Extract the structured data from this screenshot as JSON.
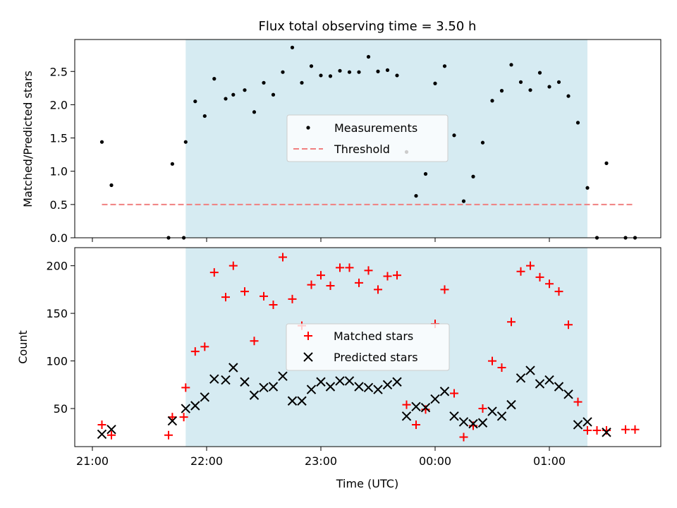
{
  "chart_data": [
    {
      "type": "scatter",
      "title": "Flux total observing time = 3.50 h",
      "xlabel": "",
      "ylabel": "Matched/Predicted stars",
      "x_ticks": [
        "21:00",
        "22:00",
        "23:00",
        "00:00",
        "01:00"
      ],
      "y_ticks": [
        "0.0",
        "0.5",
        "1.0",
        "1.5",
        "2.0",
        "2.5"
      ],
      "ylim": [
        0,
        2.98
      ],
      "shaded_span": {
        "start": "21:49",
        "end": "01:20",
        "color": "#add8e6"
      },
      "threshold": {
        "name": "Threshold",
        "value": 0.5,
        "x_start": "21:05",
        "x_end": "01:45",
        "style": "dashed",
        "color": "#f08080"
      },
      "legend": {
        "position": "center",
        "entries": [
          "Measurements",
          "Threshold"
        ]
      },
      "series": [
        {
          "name": "Measurements",
          "color": "#000000",
          "marker": "dot",
          "points": [
            [
              "21:05",
              1.44
            ],
            [
              "21:10",
              0.79
            ],
            [
              "21:40",
              0.0
            ],
            [
              "21:42",
              1.11
            ],
            [
              "21:48",
              0.0
            ],
            [
              "21:49",
              1.44
            ],
            [
              "21:54",
              2.05
            ],
            [
              "21:59",
              1.83
            ],
            [
              "22:04",
              2.39
            ],
            [
              "22:10",
              2.09
            ],
            [
              "22:14",
              2.15
            ],
            [
              "22:20",
              2.22
            ],
            [
              "22:25",
              1.89
            ],
            [
              "22:30",
              2.33
            ],
            [
              "22:35",
              2.15
            ],
            [
              "22:40",
              2.49
            ],
            [
              "22:45",
              2.86
            ],
            [
              "22:50",
              2.33
            ],
            [
              "22:55",
              2.58
            ],
            [
              "23:00",
              2.44
            ],
            [
              "23:05",
              2.43
            ],
            [
              "23:10",
              2.51
            ],
            [
              "23:15",
              2.49
            ],
            [
              "23:20",
              2.49
            ],
            [
              "23:25",
              2.72
            ],
            [
              "23:30",
              2.5
            ],
            [
              "23:35",
              2.52
            ],
            [
              "23:40",
              2.44
            ],
            [
              "23:45",
              1.29
            ],
            [
              "23:50",
              0.63
            ],
            [
              "23:55",
              0.96
            ],
            [
              "00:00",
              2.32
            ],
            [
              "00:05",
              2.58
            ],
            [
              "00:10",
              1.54
            ],
            [
              "00:15",
              0.55
            ],
            [
              "00:20",
              0.92
            ],
            [
              "00:25",
              1.43
            ],
            [
              "00:30",
              2.06
            ],
            [
              "00:35",
              2.21
            ],
            [
              "00:40",
              2.6
            ],
            [
              "00:45",
              2.34
            ],
            [
              "00:50",
              2.22
            ],
            [
              "00:55",
              2.48
            ],
            [
              "01:00",
              2.27
            ],
            [
              "01:05",
              2.34
            ],
            [
              "01:10",
              2.13
            ],
            [
              "01:15",
              1.73
            ],
            [
              "01:20",
              0.75
            ],
            [
              "01:25",
              0.0
            ],
            [
              "01:30",
              1.12
            ],
            [
              "01:40",
              0.0
            ],
            [
              "01:45",
              0.0
            ]
          ]
        }
      ]
    },
    {
      "type": "scatter",
      "title": "",
      "xlabel": "Time (UTC)",
      "ylabel": "Count",
      "x_ticks": [
        "21:00",
        "22:00",
        "23:00",
        "00:00",
        "01:00"
      ],
      "y_ticks": [
        "50",
        "100",
        "150",
        "200"
      ],
      "ylim": [
        10,
        219
      ],
      "shaded_span": {
        "start": "21:49",
        "end": "01:20",
        "color": "#add8e6"
      },
      "legend": {
        "position": "center",
        "entries": [
          "Matched stars",
          "Predicted stars"
        ]
      },
      "series": [
        {
          "name": "Matched stars",
          "color": "#ff0000",
          "marker": "plus",
          "points": [
            [
              "21:05",
              33
            ],
            [
              "21:10",
              22
            ],
            [
              "21:40",
              22
            ],
            [
              "21:42",
              41
            ],
            [
              "21:48",
              41
            ],
            [
              "21:49",
              72
            ],
            [
              "21:54",
              110
            ],
            [
              "21:59",
              115
            ],
            [
              "22:04",
              193
            ],
            [
              "22:10",
              167
            ],
            [
              "22:14",
              200
            ],
            [
              "22:20",
              173
            ],
            [
              "22:25",
              121
            ],
            [
              "22:30",
              168
            ],
            [
              "22:35",
              159
            ],
            [
              "22:40",
              209
            ],
            [
              "22:45",
              165
            ],
            [
              "22:50",
              137
            ],
            [
              "22:55",
              180
            ],
            [
              "23:00",
              190
            ],
            [
              "23:05",
              179
            ],
            [
              "23:10",
              198
            ],
            [
              "23:15",
              198
            ],
            [
              "23:20",
              182
            ],
            [
              "23:25",
              195
            ],
            [
              "23:30",
              175
            ],
            [
              "23:35",
              189
            ],
            [
              "23:40",
              190
            ],
            [
              "23:45",
              54
            ],
            [
              "23:50",
              33
            ],
            [
              "23:55",
              49
            ],
            [
              "00:00",
              139
            ],
            [
              "00:05",
              175
            ],
            [
              "00:10",
              66
            ],
            [
              "00:15",
              20
            ],
            [
              "00:20",
              32
            ],
            [
              "00:25",
              50
            ],
            [
              "00:30",
              100
            ],
            [
              "00:35",
              93
            ],
            [
              "00:40",
              141
            ],
            [
              "00:45",
              194
            ],
            [
              "00:50",
              200
            ],
            [
              "00:55",
              188
            ],
            [
              "01:00",
              181
            ],
            [
              "01:05",
              173
            ],
            [
              "01:10",
              138
            ],
            [
              "01:15",
              57
            ],
            [
              "01:20",
              27
            ],
            [
              "01:25",
              27
            ],
            [
              "01:30",
              27
            ],
            [
              "01:40",
              28
            ],
            [
              "01:45",
              28
            ]
          ]
        },
        {
          "name": "Predicted stars",
          "color": "#000000",
          "marker": "x",
          "points": [
            [
              "21:05",
              23
            ],
            [
              "21:10",
              28
            ],
            [
              "21:42",
              37
            ],
            [
              "21:49",
              50
            ],
            [
              "21:54",
              53
            ],
            [
              "21:59",
              62
            ],
            [
              "22:04",
              81
            ],
            [
              "22:10",
              80
            ],
            [
              "22:14",
              93
            ],
            [
              "22:20",
              78
            ],
            [
              "22:25",
              64
            ],
            [
              "22:30",
              72
            ],
            [
              "22:35",
              73
            ],
            [
              "22:40",
              84
            ],
            [
              "22:45",
              58
            ],
            [
              "22:50",
              58
            ],
            [
              "22:55",
              70
            ],
            [
              "23:00",
              78
            ],
            [
              "23:05",
              73
            ],
            [
              "23:10",
              79
            ],
            [
              "23:15",
              79
            ],
            [
              "23:20",
              73
            ],
            [
              "23:25",
              72
            ],
            [
              "23:30",
              70
            ],
            [
              "23:35",
              75
            ],
            [
              "23:40",
              78
            ],
            [
              "23:45",
              42
            ],
            [
              "23:50",
              52
            ],
            [
              "23:55",
              51
            ],
            [
              "00:00",
              60
            ],
            [
              "00:05",
              68
            ],
            [
              "00:10",
              42
            ],
            [
              "00:15",
              36
            ],
            [
              "00:20",
              34
            ],
            [
              "00:25",
              35
            ],
            [
              "00:30",
              47
            ],
            [
              "00:35",
              42
            ],
            [
              "00:40",
              54
            ],
            [
              "00:45",
              82
            ],
            [
              "00:50",
              90
            ],
            [
              "00:55",
              76
            ],
            [
              "01:00",
              80
            ],
            [
              "01:05",
              73
            ],
            [
              "01:10",
              65
            ],
            [
              "01:15",
              33
            ],
            [
              "01:20",
              36
            ],
            [
              "01:30",
              25
            ]
          ]
        }
      ]
    }
  ]
}
